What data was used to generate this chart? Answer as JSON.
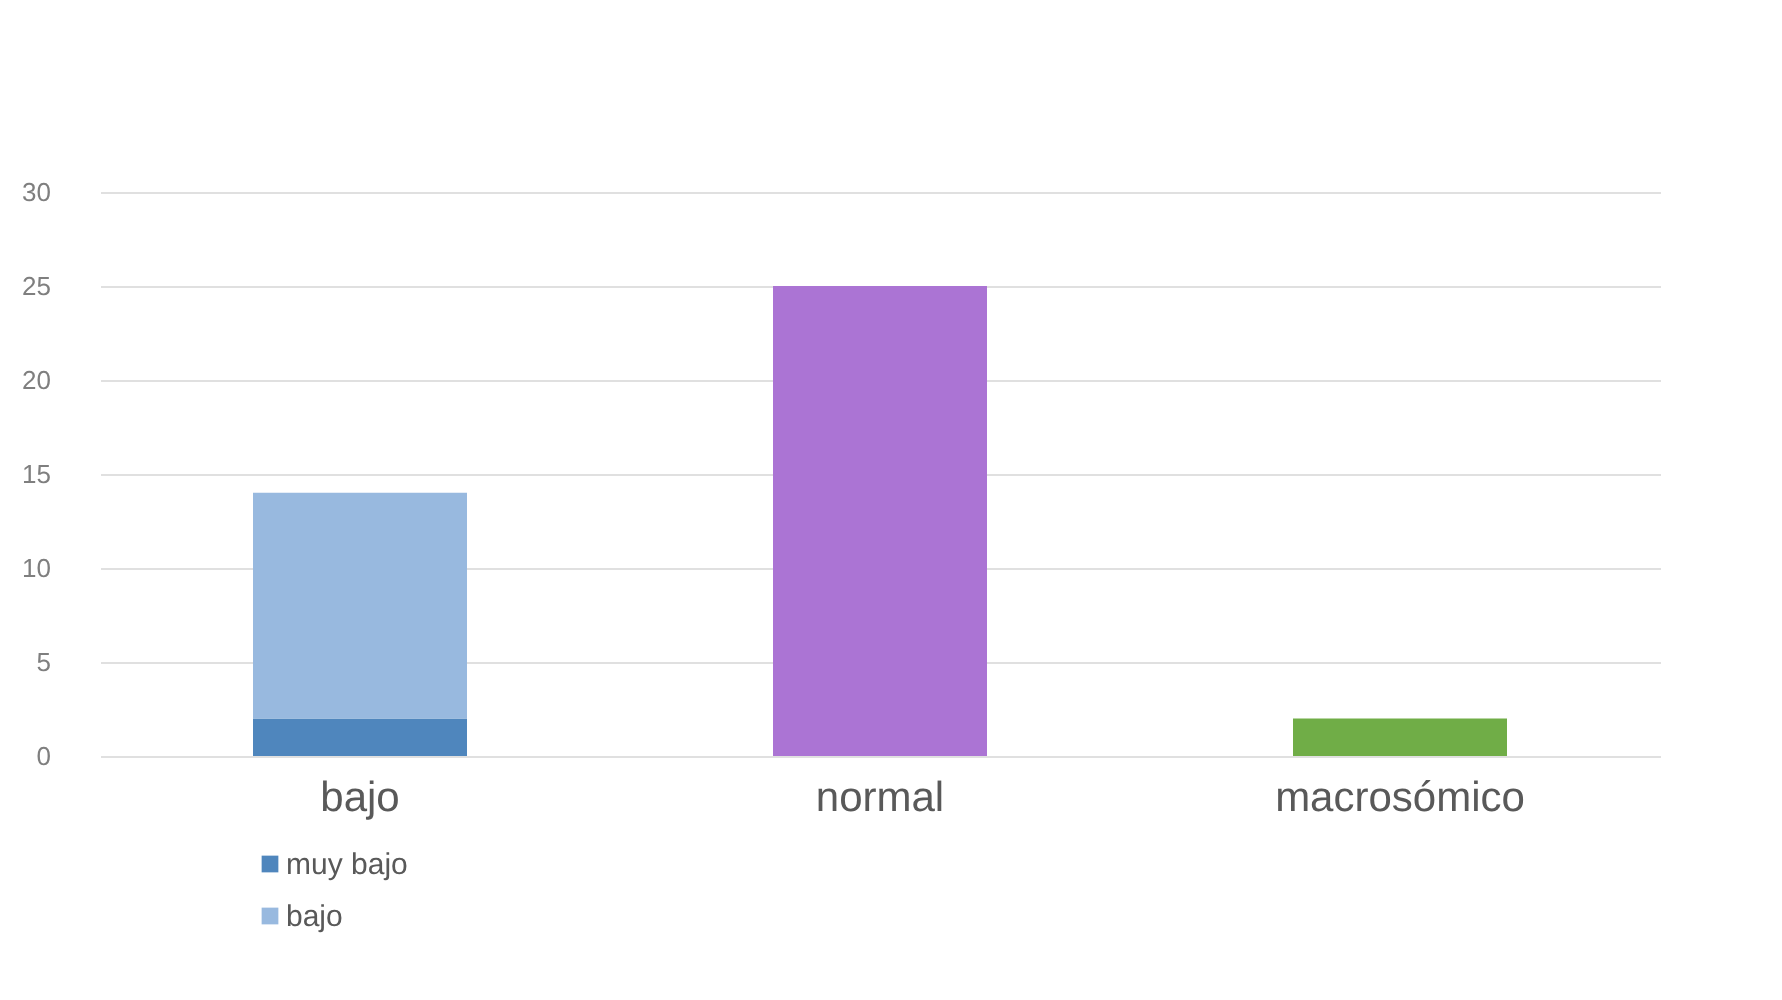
{
  "chart_data": {
    "type": "bar",
    "stacked": true,
    "categories": [
      "bajo",
      "normal",
      "macrosómico"
    ],
    "series": [
      {
        "name": "muy bajo",
        "color": "#4f86bd",
        "values": [
          2,
          null,
          null
        ]
      },
      {
        "name": "bajo",
        "color": "#98b9df",
        "values": [
          12,
          null,
          null
        ]
      },
      {
        "color": "#ab74d4",
        "values": [
          null,
          25,
          null
        ]
      },
      {
        "color": "#70ad47",
        "values": [
          null,
          null,
          2
        ]
      }
    ],
    "ylim": [
      0,
      30
    ],
    "yticks": [
      0,
      5,
      10,
      15,
      20,
      25,
      30
    ],
    "grid": "y",
    "legend": "bottom left"
  }
}
